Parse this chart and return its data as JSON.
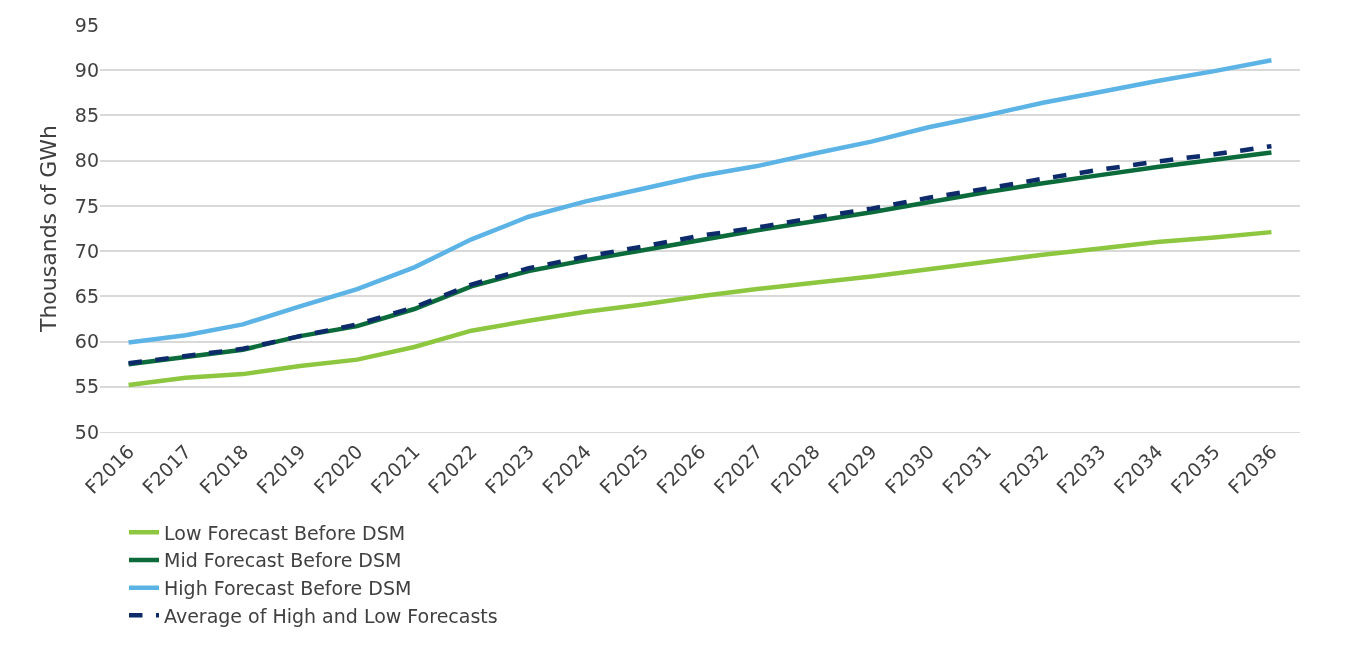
{
  "chart_data": {
    "type": "line",
    "ylabel": "Thousands of GWh",
    "categories": [
      "F2016",
      "F2017",
      "F2018",
      "F2019",
      "F2020",
      "F2021",
      "F2022",
      "F2023",
      "F2024",
      "F2025",
      "F2026",
      "F2027",
      "F2028",
      "F2029",
      "F2030",
      "F2031",
      "F2032",
      "F2033",
      "F2034",
      "F2035",
      "F2036"
    ],
    "series": [
      {
        "name": "Low Forecast Before DSM",
        "color": "#8dc63f",
        "values": [
          55.2,
          56.0,
          56.4,
          57.3,
          58.0,
          59.4,
          61.2,
          62.3,
          63.3,
          64.1,
          65.0,
          65.8,
          66.5,
          67.2,
          68.0,
          68.8,
          69.6,
          70.3,
          71.0,
          71.5,
          72.1
        ]
      },
      {
        "name": "Mid Forecast Before DSM",
        "color": "#0b6b3a",
        "values": [
          57.5,
          58.3,
          59.1,
          60.6,
          61.7,
          63.6,
          66.1,
          67.8,
          69.0,
          70.1,
          71.2,
          72.3,
          73.3,
          74.3,
          75.4,
          76.5,
          77.5,
          78.4,
          79.3,
          80.1,
          80.9
        ]
      },
      {
        "name": "High Forecast Before DSM",
        "color": "#5cb3e6",
        "values": [
          59.9,
          60.7,
          61.9,
          63.9,
          65.8,
          68.2,
          71.3,
          73.8,
          75.5,
          76.9,
          78.3,
          79.4,
          80.8,
          82.1,
          83.7,
          85.0,
          86.4,
          87.6,
          88.8,
          89.9,
          91.1
        ]
      },
      {
        "name": "Average of High and Low Forecasts",
        "color": "#0d2a6b",
        "line_style": "dashed",
        "values": [
          57.6,
          58.4,
          59.2,
          60.6,
          61.9,
          63.8,
          66.3,
          68.1,
          69.4,
          70.5,
          71.7,
          72.6,
          73.7,
          74.7,
          75.9,
          76.9,
          78.0,
          79.0,
          79.9,
          80.7,
          81.6
        ]
      }
    ],
    "ylim": [
      50,
      95
    ],
    "yticks": [
      50,
      55,
      60,
      65,
      70,
      75,
      80,
      85,
      90,
      95
    ],
    "grid": "y",
    "legend": "bottom",
    "line_style": "solid",
    "marker": "none"
  }
}
